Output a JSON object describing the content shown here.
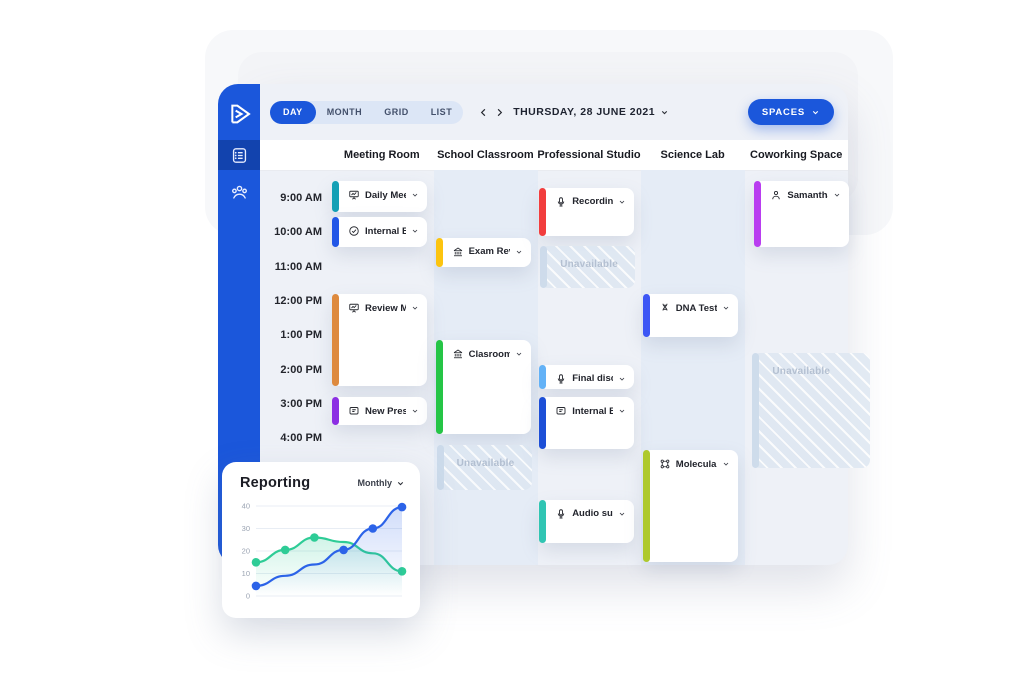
{
  "colors": {
    "accent": "#1b57db",
    "sidebar_active": "#1243ae",
    "panel_bg": "#eef1f7",
    "column_tint": "#e5ecf6",
    "unavailable_bg": "#dde7f2"
  },
  "toolbar": {
    "view_tabs": [
      {
        "label": "DAY",
        "active": true
      },
      {
        "label": "MONTH",
        "active": false
      },
      {
        "label": "GRID",
        "active": false
      },
      {
        "label": "LIST",
        "active": false
      }
    ],
    "date_label": "THURSDAY, 28 JUNE 2021",
    "spaces_button": "SPACES"
  },
  "sidebar": {
    "items": [
      {
        "icon": "agenda-icon",
        "active": true
      },
      {
        "icon": "users-icon",
        "active": false
      }
    ]
  },
  "calendar": {
    "columns": [
      "Meeting Room",
      "School Classroom",
      "Professional Studio",
      "Science Lab",
      "Coworking Space"
    ],
    "times": [
      "9:00 AM",
      "10:00 AM",
      "11:00 AM",
      "12:00 PM",
      "1:00 PM",
      "2:00 PM",
      "3:00 PM",
      "4:00 PM"
    ],
    "unavailable_label": "Unavailable",
    "events": [
      {
        "title": "Daily Meeting",
        "icon": "presentation-icon",
        "column": 0,
        "start": 9.0,
        "end": 10.0,
        "color": "#14a0b5",
        "type": "event"
      },
      {
        "title": "Internal Booking",
        "icon": "check-circle-icon",
        "column": 0,
        "start": 10.05,
        "end": 11.0,
        "color": "#2257e7",
        "type": "event"
      },
      {
        "title": "Review Meeting",
        "icon": "presentation-icon",
        "column": 0,
        "start": 12.3,
        "end": 15.05,
        "color": "#de8a3e",
        "type": "event"
      },
      {
        "title": "New Presentation",
        "icon": "board-icon",
        "column": 0,
        "start": 15.3,
        "end": 16.2,
        "color": "#8c2fe3",
        "type": "event"
      },
      {
        "title": "Exam Review",
        "icon": "building-icon",
        "column": 1,
        "start": 10.65,
        "end": 11.6,
        "color": "#fcc40f",
        "type": "event"
      },
      {
        "title": "Clasroom Hour",
        "icon": "building-icon",
        "column": 1,
        "start": 13.65,
        "end": 16.45,
        "color": "#25c546",
        "type": "event"
      },
      {
        "title": "Unavailable",
        "column": 1,
        "start": 16.7,
        "end": 18.1,
        "type": "unavailable"
      },
      {
        "title": "Recording Session",
        "icon": "mic-icon",
        "column": 2,
        "start": 9.2,
        "end": 10.7,
        "color": "#f23d3d",
        "type": "event"
      },
      {
        "title": "Unavailable",
        "column": 2,
        "start": 10.9,
        "end": 12.2,
        "type": "unavailable"
      },
      {
        "title": "Final discovery",
        "icon": "mic-icon",
        "column": 2,
        "start": 14.35,
        "end": 15.15,
        "color": "#63b2f7",
        "type": "event"
      },
      {
        "title": "Internal Booking",
        "icon": "board-icon",
        "column": 2,
        "start": 15.3,
        "end": 16.9,
        "color": "#1d4fd7",
        "type": "event"
      },
      {
        "title": "Audio subtitles",
        "icon": "mic-icon",
        "column": 2,
        "start": 18.3,
        "end": 19.65,
        "color": "#30c5b3",
        "type": "event"
      },
      {
        "title": "DNA Testing",
        "icon": "dna-icon",
        "column": 3,
        "start": 12.3,
        "end": 13.65,
        "color": "#3c56f5",
        "type": "event"
      },
      {
        "title": "Molecular Data",
        "icon": "molecule-icon",
        "column": 3,
        "start": 16.85,
        "end": 20.2,
        "color": "#aec92d",
        "type": "event"
      },
      {
        "title": "Samantha Smith",
        "icon": "person-icon",
        "column": 4,
        "start": 9.0,
        "end": 11.0,
        "color": "#b93df0",
        "type": "event"
      },
      {
        "title": "Unavailable",
        "column": 4,
        "start": 14.0,
        "end": 17.45,
        "type": "unavailable",
        "wide": true
      }
    ]
  },
  "reporting": {
    "title": "Reporting",
    "period": "Monthly"
  },
  "chart_data": {
    "type": "line",
    "title": "Reporting",
    "period_selector": "Monthly",
    "x": [
      1,
      2,
      3,
      4,
      5,
      6
    ],
    "ylim": [
      0,
      40
    ],
    "yticks": [
      0,
      10,
      20,
      30,
      40
    ],
    "grid": true,
    "legend": "none",
    "series": [
      {
        "name": "green-series",
        "color": "#2ecc96",
        "values": [
          15,
          20.5,
          26,
          24,
          19,
          11
        ],
        "dots": [
          0,
          1,
          2,
          5
        ],
        "area": true
      },
      {
        "name": "blue-series",
        "color": "#2c63e8",
        "values": [
          4.5,
          9,
          14,
          20.5,
          30,
          39.5
        ],
        "dots": [
          0,
          3,
          4,
          5
        ],
        "area": true
      }
    ]
  }
}
